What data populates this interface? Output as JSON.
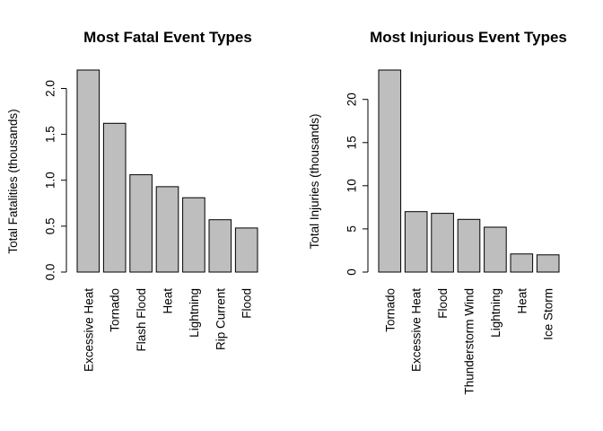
{
  "chart_data": [
    {
      "type": "bar",
      "title": "Most Fatal Event Types",
      "ylabel": "Total Fatalities (thousands)",
      "xlabel": "",
      "categories": [
        "Excessive Heat",
        "Tornado",
        "Flash Flood",
        "Heat",
        "Lightning",
        "Rip Current",
        "Flood"
      ],
      "values": [
        2.2,
        1.62,
        1.06,
        0.93,
        0.81,
        0.57,
        0.48
      ],
      "ylim": [
        0,
        2.2
      ],
      "yticks": [
        0.0,
        0.5,
        1.0,
        1.5,
        2.0
      ],
      "ytick_labels": [
        "0.0",
        "0.5",
        "1.0",
        "1.5",
        "2.0"
      ],
      "grid": false,
      "bar_color": "#bebebe"
    },
    {
      "type": "bar",
      "title": "Most Injurious Event Types",
      "ylabel": "Total Injuries (thousands)",
      "xlabel": "",
      "categories": [
        "Tornado",
        "Excessive Heat",
        "Flood",
        "Thunderstorm Wind",
        "Lightning",
        "Heat",
        "Ice Storm"
      ],
      "values": [
        23.4,
        7.0,
        6.8,
        6.1,
        5.2,
        2.1,
        2.0
      ],
      "ylim": [
        0,
        23.4
      ],
      "yticks": [
        0,
        5,
        10,
        15,
        20
      ],
      "ytick_labels": [
        "0",
        "5",
        "10",
        "15",
        "20"
      ],
      "grid": false,
      "bar_color": "#bebebe"
    }
  ]
}
